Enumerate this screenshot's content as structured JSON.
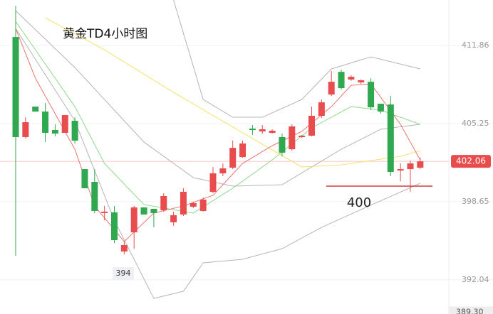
{
  "chart_data": {
    "type": "candlestick",
    "title": "黄金TD4小时图",
    "ylim": [
      389.14,
      415.71
    ],
    "yticks": [
      392.04,
      398.65,
      405.25,
      411.86
    ],
    "up_color": "#e84c4c",
    "down_color": "#2fa84f",
    "candles": {
      "open": [
        412.58,
        404.11,
        406.69,
        406.27,
        404.71,
        404.47,
        405.49,
        401.4,
        400.32,
        397.68,
        397.74,
        394.43,
        396.05,
        398.16,
        398.04,
        397.92,
        396.9,
        397.56,
        398.22,
        397.86,
        399.48,
        401.04,
        401.52,
        402.42,
        404.83,
        404.59,
        404.47,
        404.11,
        403.08,
        404.11,
        404.23,
        405.91,
        407.71,
        409.63,
        408.98,
        408.74,
        408.79,
        406.93,
        406.87,
        401.28,
        401.4,
        401.52
      ],
      "high": [
        415.22,
        405.79,
        406.69,
        406.99,
        405.19,
        405.97,
        405.79,
        401.4,
        401.4,
        398.28,
        398.28,
        395.27,
        398.28,
        398.16,
        398.04,
        399.36,
        397.8,
        399.78,
        398.64,
        399.0,
        401.58,
        401.88,
        403.81,
        403.81,
        405.13,
        405.13,
        404.77,
        404.41,
        405.19,
        404.29,
        406.69,
        407.29,
        409.69,
        409.82,
        409.34,
        408.99,
        409.09,
        406.93,
        407.59,
        401.88,
        402.12,
        402.36
      ],
      "low": [
        394.07,
        403.99,
        406.27,
        403.69,
        404.17,
        404.47,
        403.57,
        399.78,
        397.68,
        397.07,
        395.15,
        394.19,
        394.67,
        397.56,
        396.47,
        397.8,
        396.6,
        397.44,
        398.1,
        397.8,
        399.36,
        400.8,
        401.4,
        402.36,
        404.29,
        404.41,
        404.41,
        402.48,
        402.96,
        404.05,
        404.17,
        405.73,
        407.59,
        408.13,
        408.86,
        408.61,
        406.39,
        406.09,
        400.8,
        400.38,
        399.48,
        401.4
      ],
      "close": [
        404.11,
        405.37,
        406.27,
        404.47,
        404.41,
        405.97,
        403.81,
        399.78,
        397.86,
        397.8,
        395.39,
        394.97,
        398.16,
        397.56,
        397.68,
        399.12,
        397.5,
        399.48,
        398.52,
        398.82,
        401.04,
        401.46,
        403.2,
        403.57,
        404.71,
        404.77,
        404.65,
        402.79,
        405.01,
        404.23,
        405.91,
        407.05,
        408.79,
        408.25,
        409.21,
        408.92,
        406.63,
        406.27,
        401.16,
        401.4,
        401.88,
        402.06
      ]
    },
    "overlays": [
      {
        "color": "#b5b5b5",
        "x": [
          16,
          19,
          22,
          25,
          29,
          32,
          36,
          41
        ],
        "values": [
          415.71,
          407.29,
          405.79,
          405.79,
          407.29,
          409.88,
          410.9,
          409.88
        ]
      },
      {
        "color": "#b5b5b5",
        "x": [
          0,
          6,
          13,
          18,
          22,
          27,
          33,
          37,
          41
        ],
        "values": [
          414.8,
          409.99,
          403.69,
          400.68,
          399.96,
          400.08,
          403.08,
          404.77,
          405.19
        ]
      },
      {
        "color": "#b5b5b5",
        "x": [
          0,
          6,
          10,
          14,
          17,
          19,
          23,
          27,
          31,
          35,
          41
        ],
        "values": [
          413.3,
          405.49,
          397.07,
          390.46,
          391.06,
          393.47,
          393.77,
          394.67,
          396.47,
          397.98,
          400.2
        ]
      },
      {
        "color": "#f3e36a",
        "x": [
          3,
          9,
          16,
          24,
          29,
          33,
          39,
          41
        ],
        "values": [
          414.2,
          411.5,
          407.89,
          403.99,
          401.58,
          401.76,
          402.48,
          402.96
        ]
      },
      {
        "color": "#8fd98a",
        "x": [
          0,
          6,
          9,
          13,
          18,
          22,
          26,
          30,
          34,
          37,
          41
        ],
        "values": [
          413.9,
          406.69,
          401.88,
          398.4,
          397.68,
          399.78,
          402.18,
          404.89,
          406.69,
          406.39,
          405.19
        ]
      },
      {
        "color": "#e8766e",
        "x": [
          0,
          2,
          6,
          8,
          11,
          14,
          17,
          20,
          23,
          26,
          29,
          32,
          34,
          36,
          39,
          41
        ],
        "values": [
          413.3,
          409.09,
          403.08,
          398.28,
          395.27,
          397.68,
          398.28,
          399.18,
          401.88,
          403.38,
          404.59,
          406.69,
          408.49,
          408.61,
          405.19,
          402.18
        ]
      }
    ],
    "current_price": 402.06,
    "cursor_price": {
      "value": 389.3,
      "label": "389.30"
    },
    "low_annotation": {
      "value": 394.19,
      "label": "394"
    },
    "support_line": {
      "value": 399.96,
      "label": "400"
    }
  }
}
